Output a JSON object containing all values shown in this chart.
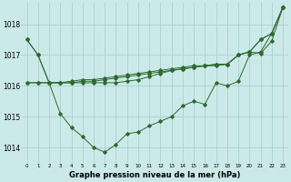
{
  "title": "Graphe pression niveau de la mer (hPa)",
  "bg_color": "#cce9e9",
  "grid_color": "#aad0d0",
  "line_color": "#2d6a2d",
  "ylim": [
    1013.5,
    1018.7
  ],
  "yticks": [
    1014,
    1015,
    1016,
    1017,
    1018
  ],
  "xlim": [
    -0.5,
    23.5
  ],
  "series": [
    [
      1017.5,
      1017.0,
      1016.1,
      1016.1,
      1016.1,
      1016.1,
      1016.1,
      1016.1,
      1016.1,
      1016.15,
      1016.2,
      1016.3,
      1016.4,
      1016.5,
      1016.55,
      1016.6,
      1016.65,
      1016.65,
      1016.7,
      1017.0,
      1017.1,
      1017.05,
      1017.45,
      1018.55
    ],
    [
      1017.5,
      1017.0,
      1016.1,
      1015.1,
      1014.65,
      1014.35,
      1014.0,
      1013.85,
      1014.1,
      1014.45,
      1014.5,
      1014.7,
      1014.85,
      1015.0,
      1015.35,
      1015.5,
      1015.4,
      1016.1,
      1016.0,
      1016.15,
      1017.0,
      1017.1,
      1017.7,
      1018.55
    ],
    [
      1016.1,
      1016.1,
      1016.1,
      1016.1,
      1016.1,
      1016.15,
      1016.15,
      1016.2,
      1016.25,
      1016.3,
      1016.35,
      1016.4,
      1016.45,
      1016.5,
      1016.55,
      1016.6,
      1016.65,
      1016.7,
      1016.7,
      1017.0,
      1017.1,
      1017.5,
      1017.7,
      1018.55
    ],
    [
      1016.1,
      1016.1,
      1016.1,
      1016.1,
      1016.15,
      1016.2,
      1016.2,
      1016.25,
      1016.3,
      1016.35,
      1016.4,
      1016.45,
      1016.5,
      1016.55,
      1016.6,
      1016.65,
      1016.65,
      1016.7,
      1016.7,
      1017.0,
      1017.1,
      1017.5,
      1017.7,
      1018.55
    ]
  ]
}
